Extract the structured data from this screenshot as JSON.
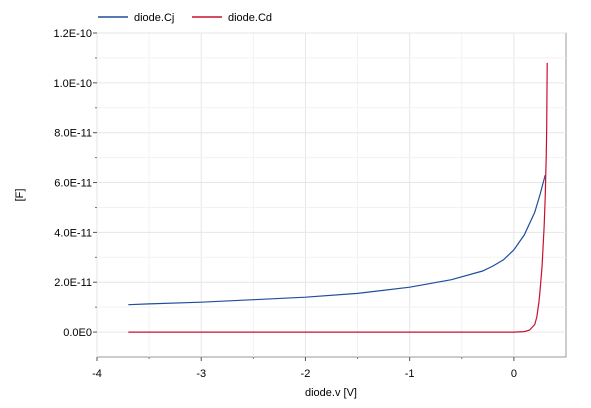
{
  "chart_data": {
    "type": "line",
    "xlabel": "diode.v [V]",
    "ylabel": "[F]",
    "xlim": [
      -4,
      0.5
    ],
    "ylim": [
      -1e-11,
      1.2e-10
    ],
    "x_ticks": [
      -4,
      -3,
      -2,
      -1,
      0
    ],
    "x_tick_labels": [
      "-4",
      "-3",
      "-2",
      "-1",
      "0"
    ],
    "y_ticks": [
      0,
      2e-11,
      4e-11,
      6e-11,
      8e-11,
      1e-10,
      1.2e-10
    ],
    "y_tick_labels": [
      "0.0E0",
      "2.0E-11",
      "4.0E-11",
      "6.0E-11",
      "8.0E-11",
      "1.0E-10",
      "1.2E-10"
    ],
    "grid": true,
    "legend_position": "top-left",
    "series": [
      {
        "name": "diode.Cj",
        "color": "#1f4e9c",
        "x": [
          -3.7,
          -3.5,
          -3.0,
          -2.5,
          -2.0,
          -1.5,
          -1.0,
          -0.6,
          -0.3,
          -0.2,
          -0.1,
          0.0,
          0.1,
          0.2,
          0.25,
          0.3
        ],
        "y": [
          1.1e-11,
          1.13e-11,
          1.2e-11,
          1.3e-11,
          1.4e-11,
          1.55e-11,
          1.8e-11,
          2.1e-11,
          2.45e-11,
          2.65e-11,
          2.9e-11,
          3.3e-11,
          3.9e-11,
          4.8e-11,
          5.5e-11,
          6.3e-11
        ]
      },
      {
        "name": "diode.Cd",
        "color": "#c8102e",
        "x": [
          -3.7,
          -1.0,
          0.0,
          0.1,
          0.15,
          0.2,
          0.22,
          0.24,
          0.25,
          0.27,
          0.29,
          0.3,
          0.31,
          0.315,
          0.32
        ],
        "y": [
          0,
          0,
          0,
          2e-13,
          8e-13,
          3e-12,
          6e-12,
          1.2e-11,
          1.6e-11,
          2.6e-11,
          4.2e-11,
          5.4e-11,
          7e-11,
          8.2e-11,
          1.08e-10
        ]
      }
    ]
  }
}
